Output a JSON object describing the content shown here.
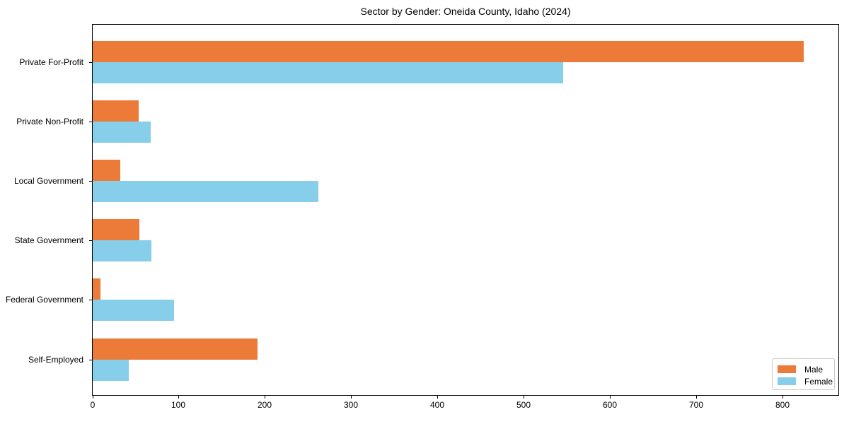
{
  "chart_data": {
    "type": "bar",
    "orientation": "horizontal",
    "title": "Sector by Gender: Oneida County, Idaho (2024)",
    "categories": [
      "Private For-Profit",
      "Private Non-Profit",
      "Local Government",
      "State Government",
      "Federal Government",
      "Self-Employed"
    ],
    "series": [
      {
        "name": "Male",
        "color": "#ec7a38",
        "values": [
          824,
          53,
          32,
          54,
          9,
          191
        ]
      },
      {
        "name": "Female",
        "color": "#87ceeb",
        "values": [
          545,
          67,
          262,
          68,
          94,
          42
        ]
      }
    ],
    "xlabel": "",
    "ylabel": "",
    "xlim": [
      0,
      866
    ],
    "xticks": [
      0,
      100,
      200,
      300,
      400,
      500,
      600,
      700,
      800
    ],
    "grid": false,
    "legend": {
      "position": "lower right",
      "entries": [
        "Male",
        "Female"
      ]
    },
    "axis_color": "#000000",
    "background_color": "#ffffff"
  }
}
